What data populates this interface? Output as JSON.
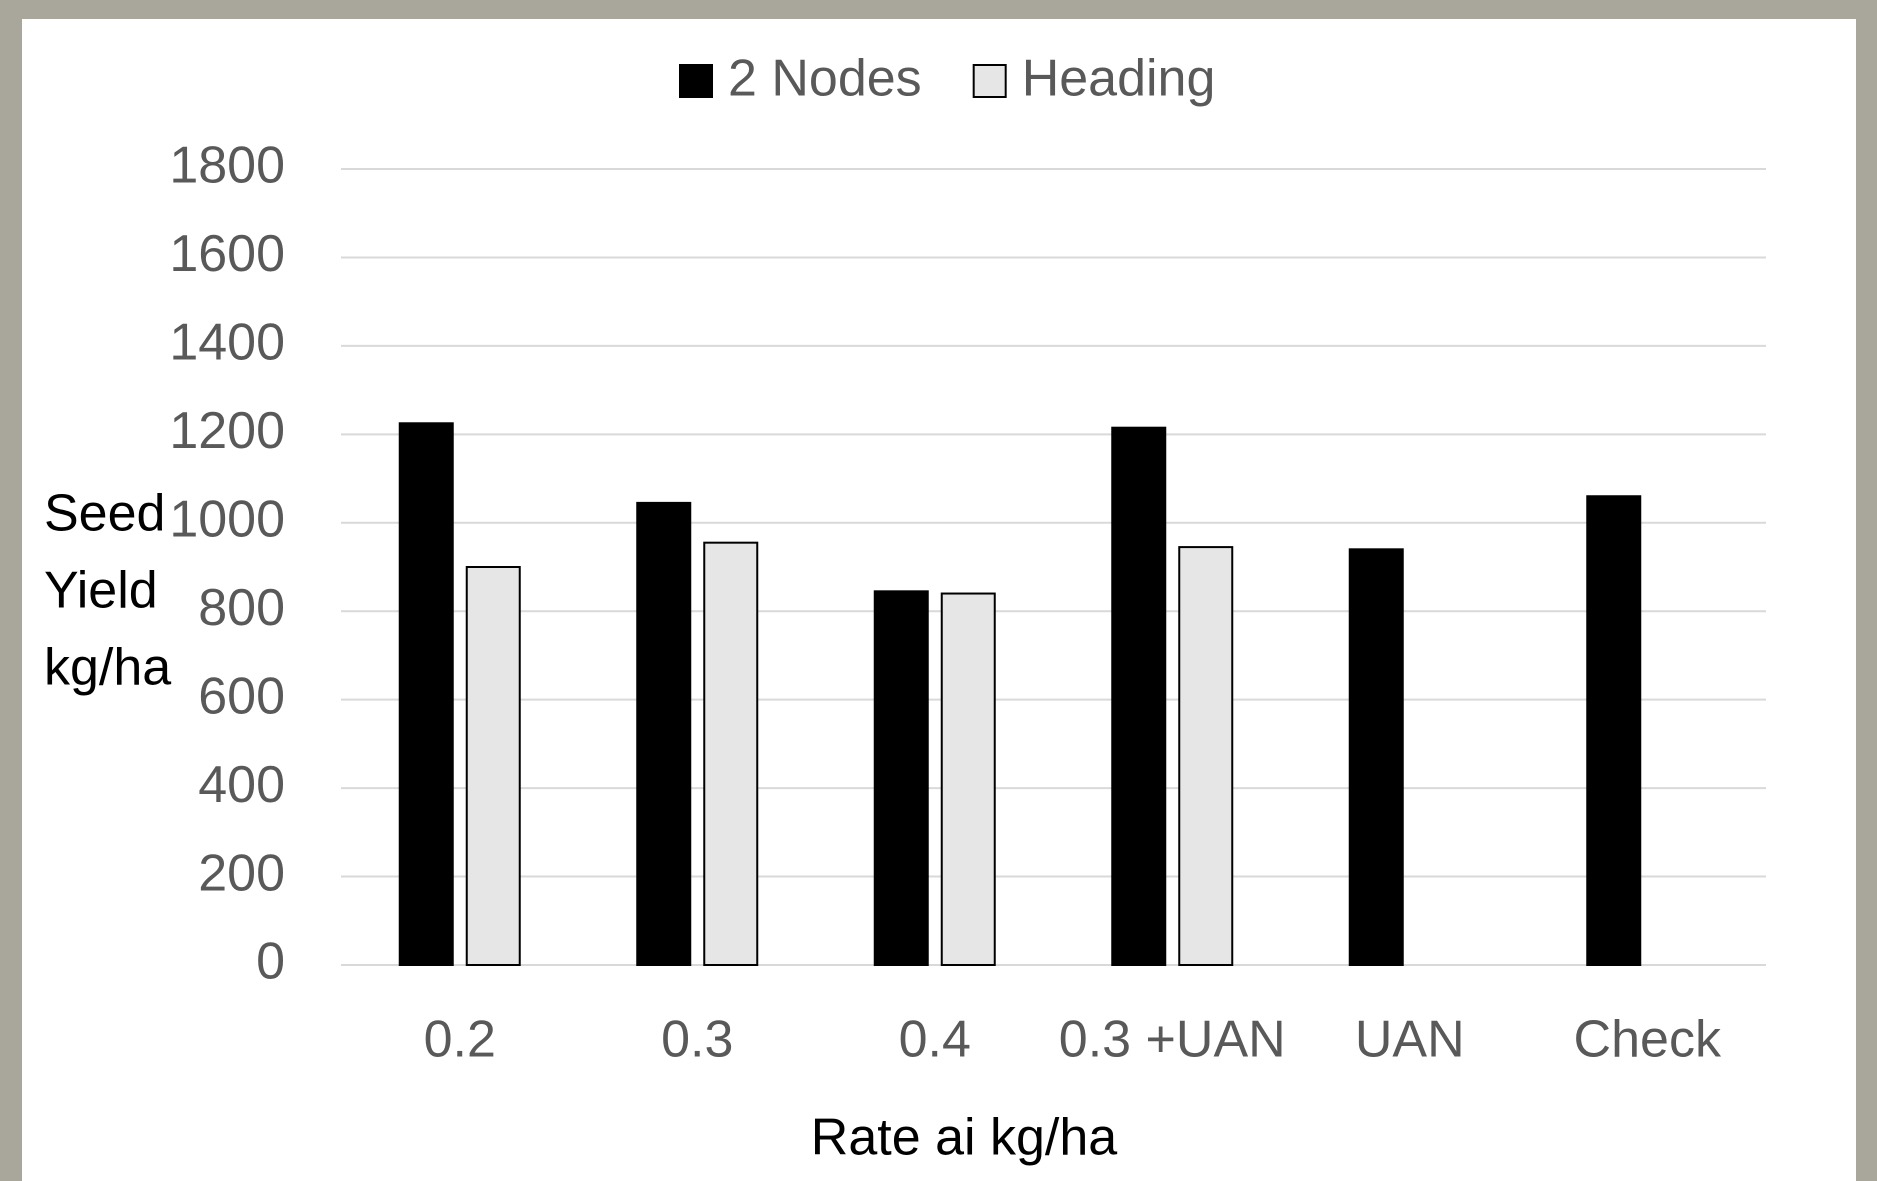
{
  "chart_data": {
    "type": "bar",
    "categories": [
      "0.2",
      "0.3",
      "0.4",
      "0.3 +UAN",
      "UAN",
      "Check"
    ],
    "series": [
      {
        "name": "2 Nodes",
        "color": "#000000",
        "values": [
          1225,
          1045,
          845,
          1215,
          940,
          1060
        ]
      },
      {
        "name": "Heading",
        "color": "#e6e6e6",
        "values": [
          900,
          955,
          840,
          945,
          null,
          null
        ]
      }
    ],
    "x_label": "Rate ai kg/ha",
    "y_label": [
      "Seed",
      "Yield",
      "kg/ha"
    ],
    "ylim": [
      0,
      1800
    ],
    "yticks": [
      0,
      200,
      400,
      600,
      800,
      1000,
      1200,
      1400,
      1600,
      1800
    ],
    "grid": true,
    "legend": "top"
  }
}
